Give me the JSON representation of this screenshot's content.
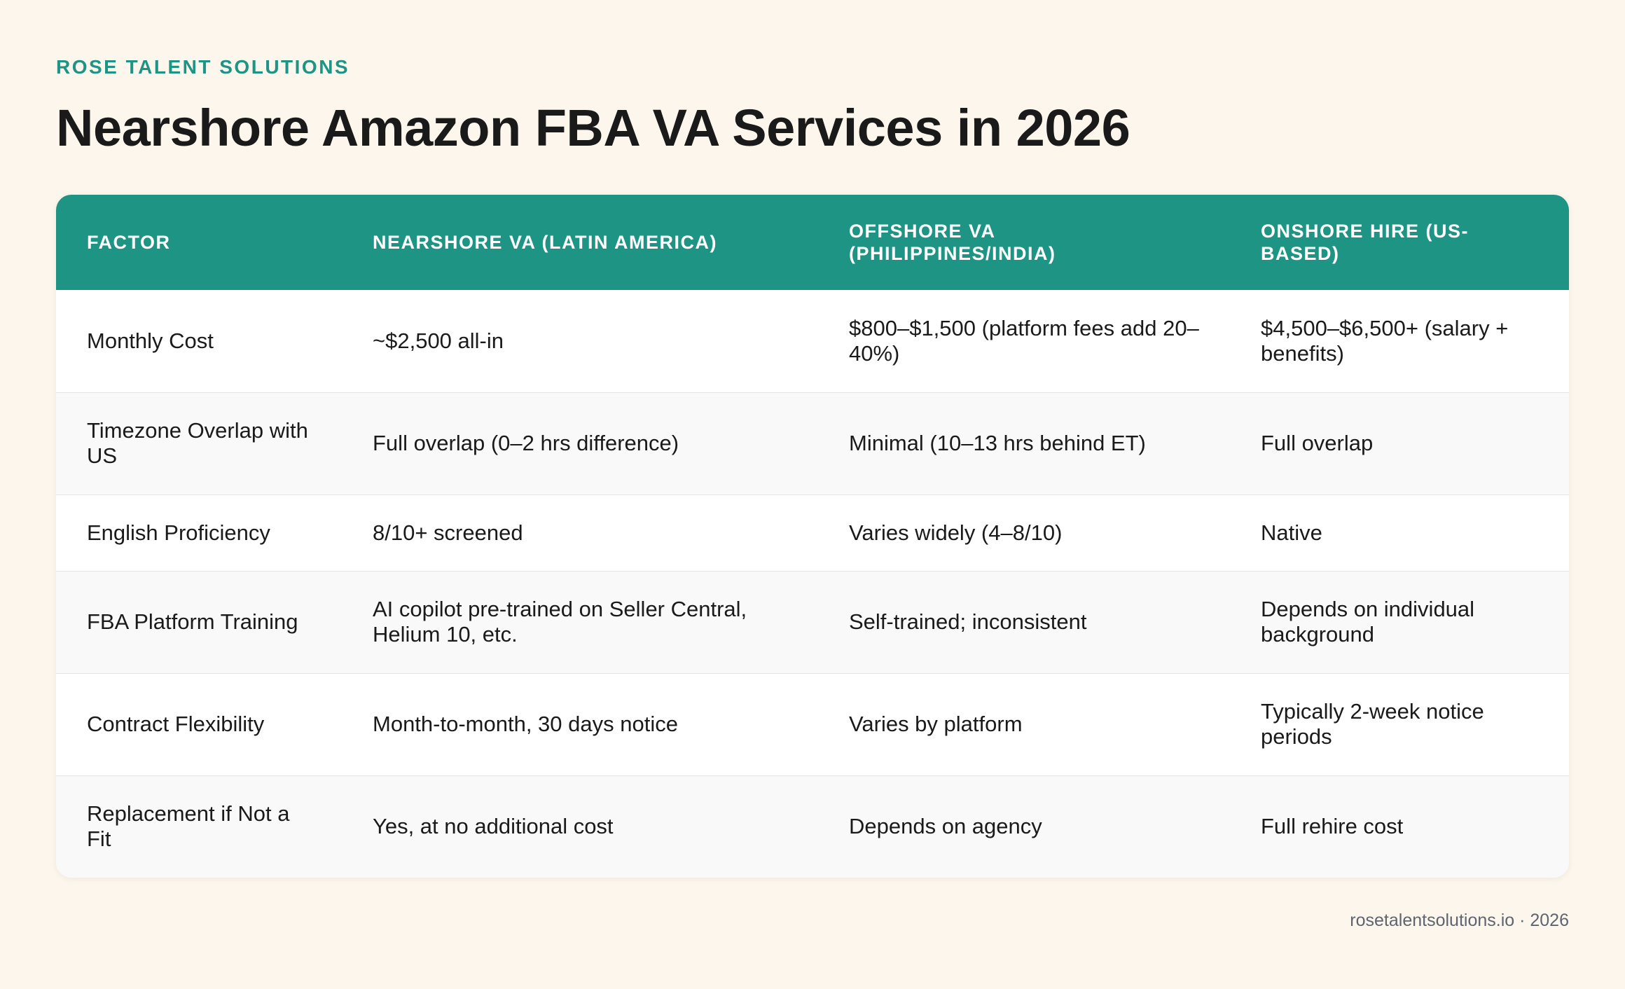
{
  "header": {
    "brand": "ROSE TALENT SOLUTIONS",
    "title": "Nearshore Amazon FBA VA Services in 2026"
  },
  "table": {
    "columns": [
      "FACTOR",
      "NEARSHORE VA (LATIN AMERICA)",
      "OFFSHORE VA (PHILIPPINES/INDIA)",
      "ONSHORE HIRE (US-BASED)"
    ],
    "rows": [
      [
        "Monthly Cost",
        "~$2,500 all-in",
        "$800–$1,500 (platform fees add 20–40%)",
        "$4,500–$6,500+ (salary + benefits)"
      ],
      [
        "Timezone Overlap with US",
        "Full overlap (0–2 hrs difference)",
        "Minimal (10–13 hrs behind ET)",
        "Full overlap"
      ],
      [
        "English Proficiency",
        "8/10+ screened",
        "Varies widely (4–8/10)",
        "Native"
      ],
      [
        "FBA Platform Training",
        "AI copilot pre-trained on Seller Central, Helium 10, etc.",
        "Self-trained; inconsistent",
        "Depends on individual background"
      ],
      [
        "Contract Flexibility",
        "Month-to-month, 30 days notice",
        "Varies by platform",
        "Typically 2-week notice periods"
      ],
      [
        "Replacement if Not a Fit",
        "Yes, at no additional cost",
        "Depends on agency",
        "Full rehire cost"
      ]
    ]
  },
  "footer": {
    "text": "rosetalentsolutions.io · 2026"
  },
  "colors": {
    "accent": "#1e9485",
    "background": "#fdf6ec",
    "row_alt": "#f9f9f9"
  }
}
